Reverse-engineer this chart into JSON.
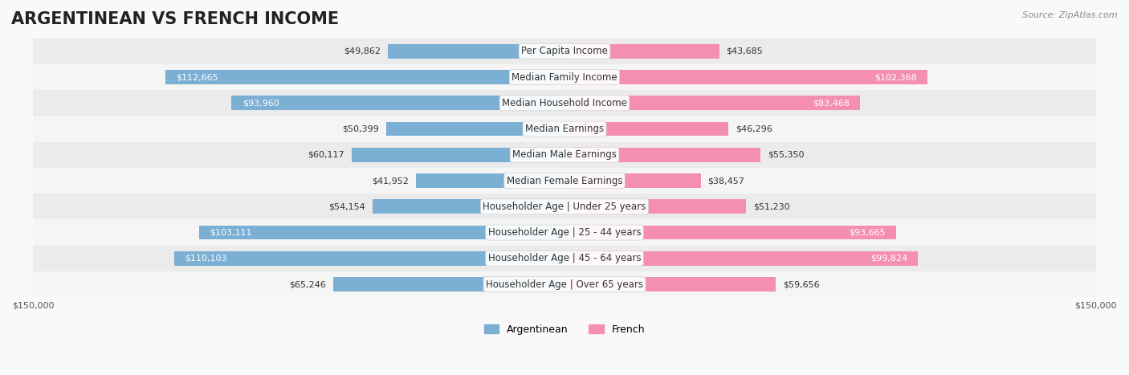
{
  "title": "ARGENTINEAN VS FRENCH INCOME",
  "source": "Source: ZipAtlas.com",
  "categories": [
    "Per Capita Income",
    "Median Family Income",
    "Median Household Income",
    "Median Earnings",
    "Median Male Earnings",
    "Median Female Earnings",
    "Householder Age | Under 25 years",
    "Householder Age | 25 - 44 years",
    "Householder Age | 45 - 64 years",
    "Householder Age | Over 65 years"
  ],
  "argentinean": [
    49862,
    112665,
    93960,
    50399,
    60117,
    41952,
    54154,
    103111,
    110103,
    65246
  ],
  "french": [
    43685,
    102368,
    83468,
    46296,
    55350,
    38457,
    51230,
    93665,
    99824,
    59656
  ],
  "max_val": 150000,
  "blue_color": "#7bafd4",
  "pink_color": "#f48fb1",
  "blue_dark": "#5b9dc0",
  "pink_dark": "#f06292",
  "bg_color": "#f5f5f5",
  "row_bg": "#eeeeee",
  "label_bg": "#ffffff",
  "title_fontsize": 15,
  "label_fontsize": 8.5,
  "value_fontsize": 8,
  "legend_fontsize": 9,
  "axis_fontsize": 8
}
